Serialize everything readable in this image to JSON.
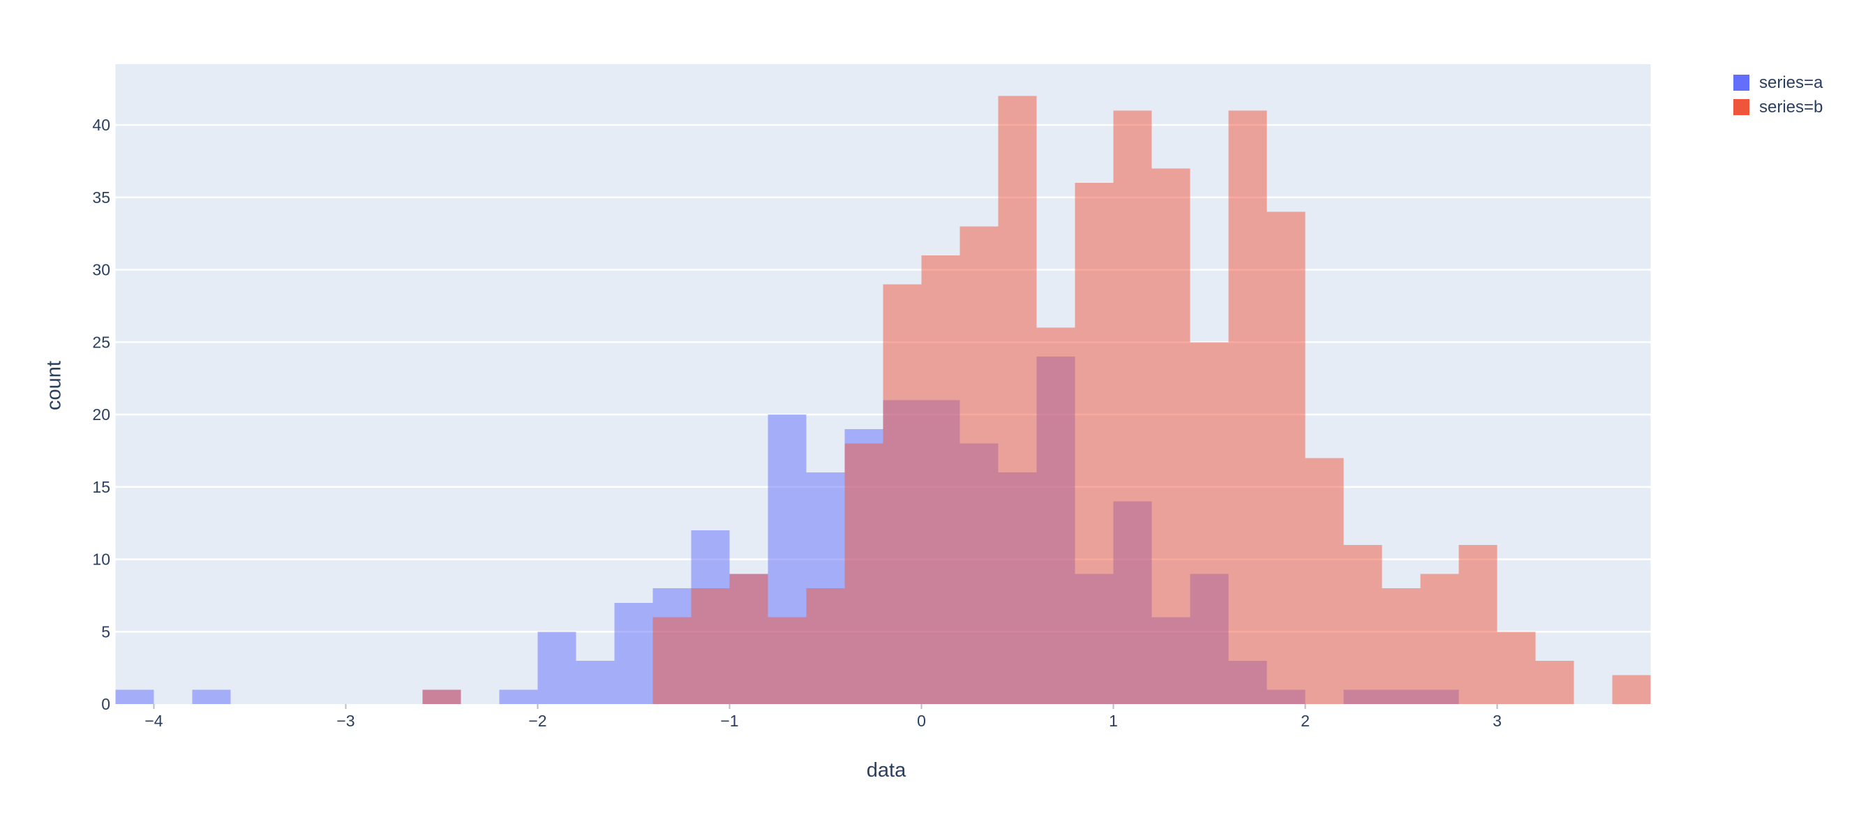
{
  "chart_data": {
    "type": "histogram",
    "mode": "overlay",
    "title": "",
    "xlabel": "data",
    "ylabel": "count",
    "x_range": [
      -4.2,
      3.8
    ],
    "y_range": [
      0,
      44.2
    ],
    "bin_start": -4.2,
    "bin_width": 0.2,
    "n_bins": 40,
    "x_ticks": [
      -4,
      -3,
      -2,
      -1,
      0,
      1,
      2,
      3
    ],
    "y_ticks": [
      0,
      5,
      10,
      15,
      20,
      25,
      30,
      35,
      40
    ],
    "grid": "horizontal-only",
    "legend_position": "top-right",
    "plot_bg_color": "#E5ECF6",
    "grid_color": "#FFFFFF",
    "tick_mark_color": "#B2BCCC",
    "text_color": "#2A3F5F",
    "bar_opacity": 0.5,
    "series": [
      {
        "name": "series=a",
        "color": "#636EFA",
        "counts": [
          1,
          0,
          1,
          0,
          0,
          0,
          0,
          0,
          1,
          0,
          1,
          5,
          3,
          7,
          8,
          12,
          9,
          20,
          16,
          19,
          21,
          21,
          18,
          16,
          24,
          9,
          14,
          6,
          9,
          3,
          1,
          0,
          1,
          1,
          1,
          0,
          0,
          0,
          0,
          0
        ]
      },
      {
        "name": "series=b",
        "color": "#EF553B",
        "counts": [
          0,
          0,
          0,
          0,
          0,
          0,
          0,
          0,
          1,
          0,
          0,
          0,
          0,
          0,
          6,
          8,
          9,
          6,
          8,
          18,
          29,
          31,
          33,
          42,
          26,
          36,
          41,
          37,
          25,
          41,
          34,
          17,
          11,
          8,
          9,
          11,
          5,
          3,
          0,
          2
        ]
      }
    ]
  },
  "axes": {
    "x_title": "data",
    "y_title": "count"
  },
  "legend": {
    "items": [
      {
        "label": "series=a",
        "color": "#636EFA"
      },
      {
        "label": "series=b",
        "color": "#EF553B"
      }
    ]
  }
}
